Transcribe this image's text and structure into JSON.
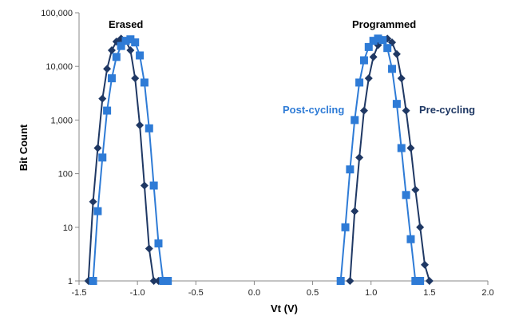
{
  "chart_data": {
    "type": "line",
    "title": "",
    "xlabel": "Vt (V)",
    "ylabel": "Bit Count",
    "xlim": [
      -1.5,
      2.0
    ],
    "ylim": [
      1,
      100000
    ],
    "yscale": "log",
    "grid": false,
    "legend": "none",
    "x_ticks": [
      -1.5,
      -1.0,
      -0.5,
      0.0,
      0.5,
      1.0,
      1.5,
      2.0
    ],
    "x_tick_labels": [
      "-1.5",
      "-1.0",
      "-0.5",
      "0.0",
      "0.5",
      "1.0",
      "1.5",
      "2.0"
    ],
    "y_ticks": [
      1,
      10,
      100,
      1000,
      10000,
      100000
    ],
    "y_tick_labels": [
      "1",
      "10",
      "100",
      "1,000",
      "10,000",
      "100,000"
    ],
    "annotations": [
      {
        "text": "Erased",
        "color": "#000000"
      },
      {
        "text": "Programmed",
        "color": "#000000"
      },
      {
        "text": "Post-cycling",
        "color": "#2E7BD6"
      },
      {
        "text": "Pre-cycling",
        "color": "#1F3864"
      }
    ],
    "series": [
      {
        "color": "#1F3864",
        "marker": "diamond",
        "x": [
          -1.42,
          -1.38,
          -1.34,
          -1.3,
          -1.26,
          -1.22,
          -1.18,
          -1.14,
          -1.1,
          -1.06,
          -1.02,
          -0.98,
          -0.94,
          -0.9,
          -0.86,
          -0.82
        ],
        "y": [
          1,
          30,
          300,
          2500,
          9000,
          20000,
          29000,
          33000,
          30000,
          20000,
          6000,
          800,
          60,
          4,
          1,
          1
        ]
      },
      {
        "color": "#2E7BD6",
        "marker": "square",
        "x": [
          -1.38,
          -1.34,
          -1.3,
          -1.26,
          -1.22,
          -1.18,
          -1.14,
          -1.1,
          -1.06,
          -1.02,
          -0.98,
          -0.94,
          -0.9,
          -0.86,
          -0.82,
          -0.78,
          -0.74
        ],
        "y": [
          1,
          20,
          200,
          1500,
          6000,
          15000,
          24000,
          30000,
          32000,
          28000,
          16000,
          5000,
          700,
          60,
          5,
          1,
          1
        ]
      },
      {
        "color": "#1F3864",
        "marker": "diamond",
        "x": [
          0.82,
          0.86,
          0.9,
          0.94,
          0.98,
          1.02,
          1.06,
          1.1,
          1.14,
          1.18,
          1.22,
          1.26,
          1.3,
          1.34,
          1.38,
          1.42,
          1.46,
          1.5
        ],
        "y": [
          1,
          20,
          200,
          1500,
          6000,
          15000,
          25000,
          31000,
          33000,
          28000,
          17000,
          6000,
          1500,
          300,
          50,
          10,
          2,
          1
        ]
      },
      {
        "color": "#2E7BD6",
        "marker": "square",
        "x": [
          0.74,
          0.78,
          0.82,
          0.86,
          0.9,
          0.94,
          0.98,
          1.02,
          1.06,
          1.1,
          1.14,
          1.18,
          1.22,
          1.26,
          1.3,
          1.34,
          1.38,
          1.42
        ],
        "y": [
          1,
          10,
          120,
          1000,
          5000,
          13000,
          23000,
          30000,
          33000,
          31000,
          22000,
          9000,
          2000,
          300,
          40,
          6,
          1,
          1
        ]
      }
    ]
  }
}
